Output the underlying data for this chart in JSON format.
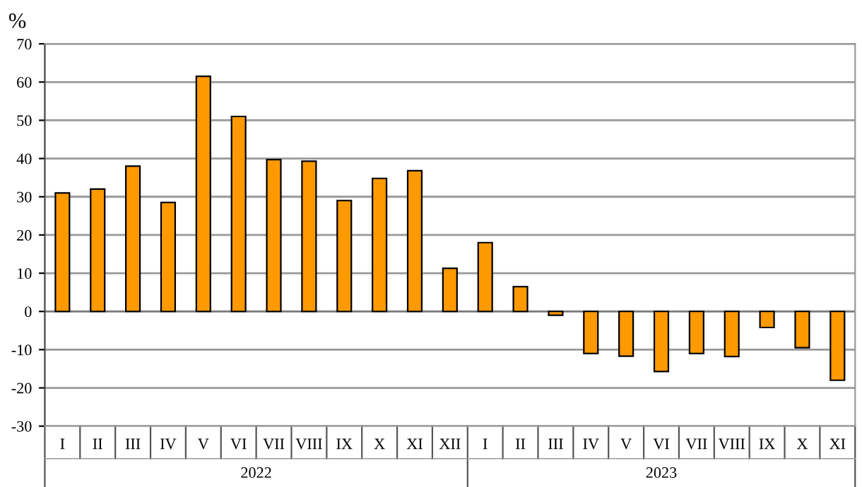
{
  "chart_data": {
    "type": "bar",
    "ylabel": "%",
    "categories": [
      "I",
      "II",
      "III",
      "IV",
      "V",
      "VI",
      "VII",
      "VIII",
      "IX",
      "X",
      "XI",
      "XII",
      "I",
      "II",
      "III",
      "IV",
      "V",
      "VI",
      "VII",
      "VIII",
      "IX",
      "X",
      "XI"
    ],
    "values": [
      31,
      32,
      38,
      28.5,
      61.5,
      51,
      39.7,
      39.3,
      29,
      34.8,
      36.8,
      11.3,
      18,
      6.5,
      -1,
      -11,
      -11.7,
      -15.7,
      -11,
      -11.8,
      -4.2,
      -9.5,
      -18
    ],
    "color": "#ff9900",
    "ylim": [
      -30,
      70
    ],
    "yticks": [
      -30,
      -20,
      -10,
      0,
      10,
      20,
      30,
      40,
      50,
      60,
      70
    ],
    "grid": "y",
    "annotations": [
      "2022",
      "2023"
    ]
  }
}
